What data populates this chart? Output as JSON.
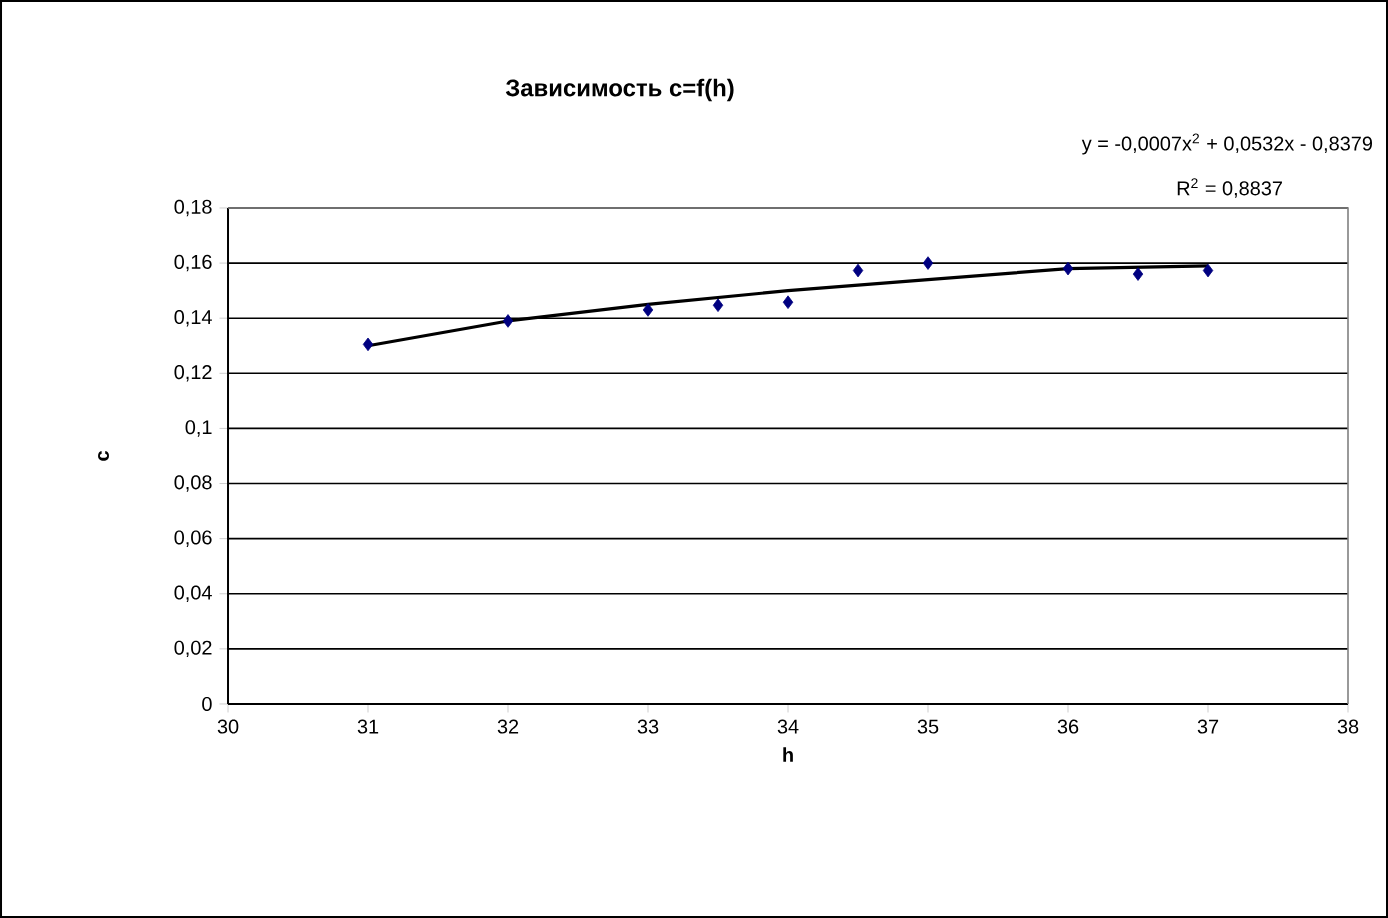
{
  "chart_data": {
    "type": "scatter",
    "title": "Зависимость c=f(h)",
    "xlabel": "h",
    "ylabel": "c",
    "series": [
      {
        "color": "#000080",
        "marker": "diamond",
        "x": [
          31,
          32,
          33,
          33.5,
          34,
          34.5,
          35,
          36,
          36.5,
          37
        ],
        "values": [
          0.1305,
          0.139,
          0.143,
          0.1447,
          0.1458,
          0.1573,
          0.16,
          0.158,
          0.156,
          0.1573
        ]
      },
      {
        "type": "line",
        "color": "#000000",
        "marker": "none",
        "x": [
          31,
          32,
          33,
          34,
          35,
          36,
          37
        ],
        "values": [
          0.13,
          0.139,
          0.145,
          0.15,
          0.154,
          0.158,
          0.159
        ]
      }
    ],
    "annotations": [
      "y = -0,0007x$^{2}$ + 0,0532x - 0,8379",
      "R$^{2}$ = 0,8837"
    ],
    "xlim": [
      30,
      38
    ],
    "xticks": [
      30,
      31,
      32,
      33,
      34,
      35,
      36,
      37,
      38
    ],
    "ylim": [
      0,
      0.18
    ],
    "yticks": [
      0,
      {
        "value": 0.02,
        "label": "0,02"
      },
      {
        "value": 0.04,
        "label": "0,04"
      },
      {
        "value": 0.06,
        "label": "0,06"
      },
      {
        "value": 0.08,
        "label": "0,08"
      },
      {
        "value": 0.1,
        "label": "0,1"
      },
      {
        "value": 0.12,
        "label": "0,12"
      },
      {
        "value": 0.14,
        "label": "0,14"
      },
      {
        "value": 0.16,
        "label": "0,16"
      },
      {
        "value": 0.18,
        "label": "0,18"
      }
    ],
    "grid": "y"
  }
}
